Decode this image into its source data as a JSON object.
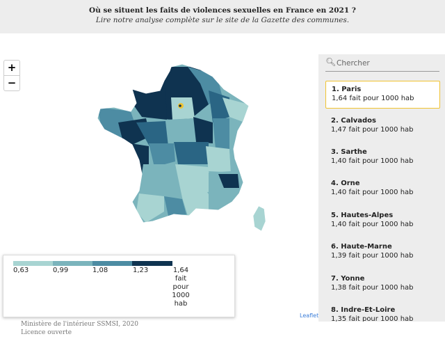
{
  "header": {
    "title": "Où se situent les faits de violences sexuelles en France en 2021 ?",
    "subtitle": "Lire notre analyse complète sur le site de la Gazette des communes."
  },
  "zoom": {
    "in": "+",
    "out": "−"
  },
  "search": {
    "placeholder": "Chercher",
    "icon": "search-icon"
  },
  "legend": {
    "labels": [
      "0,63",
      "0,99",
      "1,08",
      "1,23",
      "1,64\nfait\npour\n1000\nhab"
    ],
    "colors": [
      "#a8d4d2",
      "#7bb4bc",
      "#4d8ca3",
      "#2a6584",
      "#0f3350"
    ]
  },
  "ranking": [
    {
      "name": "1. Paris",
      "value": "1,64 fait pour 1000 hab"
    },
    {
      "name": "2. Calvados",
      "value": "1,47 fait pour 1000 hab"
    },
    {
      "name": "3. Sarthe",
      "value": "1,40 fait pour 1000 hab"
    },
    {
      "name": "4. Orne",
      "value": "1,40 fait pour 1000 hab"
    },
    {
      "name": "5. Hautes-Alpes",
      "value": "1,40 fait pour 1000 hab"
    },
    {
      "name": "6. Haute-Marne",
      "value": "1,39 fait pour 1000 hab"
    },
    {
      "name": "7. Yonne",
      "value": "1,38 fait pour 1000 hab"
    },
    {
      "name": "8. Indre-Et-Loire",
      "value": "1,35 fait pour 1000 hab"
    }
  ],
  "attribution": "Leaflet",
  "credit": [
    "Ministère de l'intérieur SSMSI, 2020",
    "Licence ouverte"
  ],
  "colors": {
    "selected_border": "#f0c330",
    "sidebar_bg": "#ededed",
    "header_bg": "#ededed"
  }
}
